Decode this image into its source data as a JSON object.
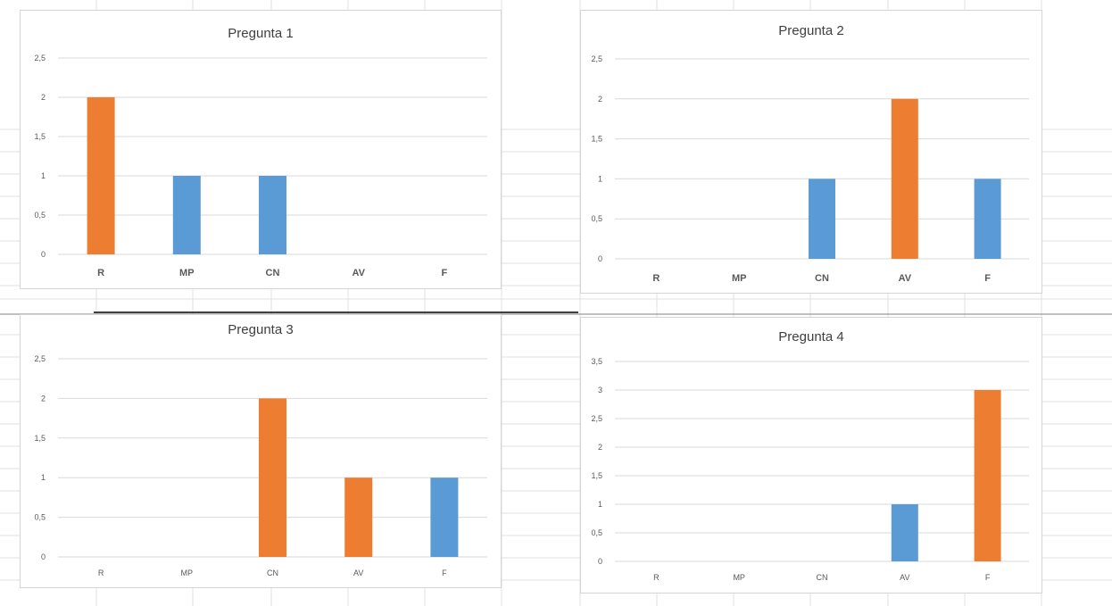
{
  "colors": {
    "orange": "#ed7d31",
    "blue": "#5b9bd5",
    "gridline": "#d9d9d9",
    "axis_text": "#595959",
    "sheet_line": "#e1e1e1",
    "separator": "#404040"
  },
  "chart_data": [
    {
      "type": "bar",
      "title": "Pregunta 1",
      "categories": [
        "R",
        "MP",
        "CN",
        "AV",
        "F"
      ],
      "values": [
        2,
        1,
        1,
        0,
        0
      ],
      "bar_colors": [
        "orange",
        "blue",
        "blue",
        "blue",
        "blue"
      ],
      "yticks": [
        "0",
        "0,5",
        "1",
        "1,5",
        "2",
        "2,5"
      ],
      "ylim": [
        0,
        2.5
      ],
      "xlabel": "",
      "ylabel": "",
      "grid": true,
      "legend": "none",
      "bold_categories": true
    },
    {
      "type": "bar",
      "title": "Pregunta 2",
      "categories": [
        "R",
        "MP",
        "CN",
        "AV",
        "F"
      ],
      "values": [
        0,
        0,
        1,
        2,
        1
      ],
      "bar_colors": [
        "blue",
        "blue",
        "blue",
        "orange",
        "blue"
      ],
      "yticks": [
        "0",
        "0,5",
        "1",
        "1,5",
        "2",
        "2,5"
      ],
      "ylim": [
        0,
        2.5
      ],
      "xlabel": "",
      "ylabel": "",
      "grid": true,
      "legend": "none",
      "bold_categories": true
    },
    {
      "type": "bar",
      "title": "Pregunta 3",
      "categories": [
        "R",
        "MP",
        "CN",
        "AV",
        "F"
      ],
      "values": [
        0,
        0,
        2,
        1,
        1
      ],
      "bar_colors": [
        "blue",
        "blue",
        "orange",
        "orange",
        "blue"
      ],
      "yticks": [
        "0",
        "0,5",
        "1",
        "1,5",
        "2",
        "2,5"
      ],
      "ylim": [
        0,
        2.5
      ],
      "xlabel": "",
      "ylabel": "",
      "grid": true,
      "legend": "none",
      "bold_categories": false
    },
    {
      "type": "bar",
      "title": "Pregunta 4",
      "categories": [
        "R",
        "MP",
        "CN",
        "AV",
        "F"
      ],
      "values": [
        0,
        0,
        0,
        1,
        3
      ],
      "bar_colors": [
        "blue",
        "blue",
        "blue",
        "blue",
        "orange"
      ],
      "yticks": [
        "0",
        "0,5",
        "1",
        "1,5",
        "2",
        "2,5",
        "3",
        "3,5"
      ],
      "ylim": [
        0,
        3.5
      ],
      "xlabel": "",
      "ylabel": "",
      "grid": true,
      "legend": "none",
      "bold_categories": false
    }
  ]
}
